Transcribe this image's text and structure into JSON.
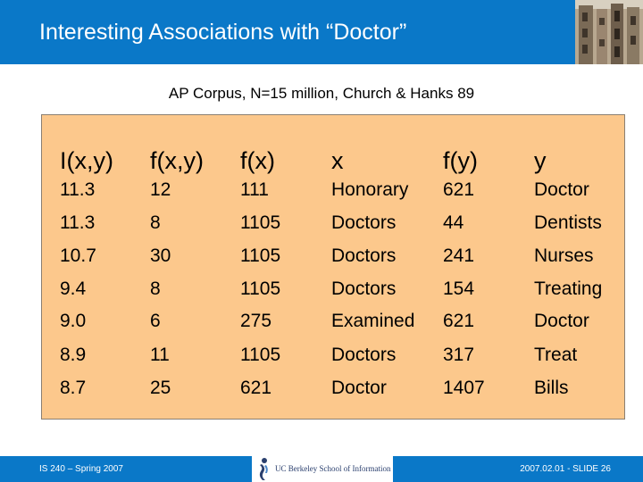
{
  "slide": {
    "title": "Interesting Associations with “Doctor”",
    "subtitle": "AP Corpus, N=15 million, Church & Hanks 89"
  },
  "table": {
    "headers": [
      "I(x,y)",
      "f(x,y)",
      "f(x)",
      "x",
      "f(y)",
      "y"
    ],
    "rows": [
      [
        "11.3",
        "12",
        "111",
        "Honorary",
        "621",
        "Doctor"
      ],
      [
        "11.3",
        "8",
        "1105",
        "Doctors",
        "44",
        "Dentists"
      ],
      [
        "10.7",
        "30",
        "1105",
        "Doctors",
        "241",
        "Nurses"
      ],
      [
        "9.4",
        "8",
        "1105",
        "Doctors",
        "154",
        "Treating"
      ],
      [
        "9.0",
        "6",
        "275",
        "Examined",
        "621",
        "Doctor"
      ],
      [
        "8.9",
        "11",
        "1105",
        "Doctors",
        "317",
        "Treat"
      ],
      [
        "8.7",
        "25",
        "621",
        "Doctor",
        "1407",
        "Bills"
      ]
    ]
  },
  "footer": {
    "left": "IS 240 – Spring 2007",
    "logo": "UC Berkeley School of Information",
    "right": "2007.02.01 - SLIDE 26"
  },
  "colors": {
    "header_bar": "#0a78c8",
    "table_bg": "#fcc88c"
  }
}
